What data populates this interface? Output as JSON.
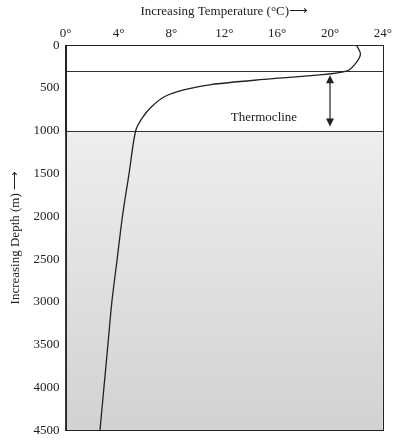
{
  "chart_data": {
    "type": "line",
    "x_label": "Increasing Temperature (°C)⟶",
    "y_label": "Increasing Depth (m) ⟶",
    "x": [
      22,
      22.3,
      22,
      21.3,
      19,
      15,
      11,
      9,
      7.5,
      6.5,
      5.8,
      5.3,
      4.8,
      4.3,
      3.9,
      3.5,
      3.2,
      2.9,
      2.6
    ],
    "values": [
      0,
      100,
      200,
      300,
      350,
      400,
      460,
      520,
      600,
      720,
      850,
      1000,
      1500,
      2000,
      2500,
      3000,
      3500,
      4000,
      4500
    ],
    "color": "#222222",
    "xlim": [
      0,
      24
    ],
    "xticks": [
      {
        "value": 0,
        "label": "0°"
      },
      {
        "value": 4,
        "label": "4°"
      },
      {
        "value": 8,
        "label": "8°"
      },
      {
        "value": 12,
        "label": "12°"
      },
      {
        "value": 16,
        "label": "16°"
      },
      {
        "value": 20,
        "label": "20°"
      },
      {
        "value": 24,
        "label": "24°"
      }
    ],
    "ylim": [
      0,
      4500
    ],
    "yticks": [
      0,
      500,
      1000,
      1500,
      2000,
      2500,
      3000,
      3500,
      4000,
      4500
    ],
    "grid": false,
    "hlines": [
      300,
      1000
    ],
    "shaded_from": 1000,
    "arrow": {
      "x": 20,
      "y_from": 350,
      "y_to": 950
    },
    "annotations": [
      {
        "text": "Thermocline",
        "x": 15,
        "y": 850
      }
    ]
  }
}
